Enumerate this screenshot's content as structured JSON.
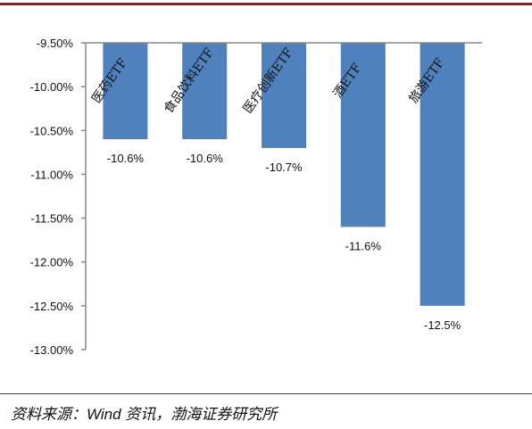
{
  "chart_data": {
    "type": "bar",
    "categories": [
      "医药ETF",
      "食品饮料ETF",
      "医疗创新ETF",
      "酒ETF",
      "旅游ETF"
    ],
    "values": [
      -10.6,
      -10.6,
      -10.7,
      -11.6,
      -12.5
    ],
    "data_labels": [
      "-10.6%",
      "-10.6%",
      "-10.7%",
      "-11.6%",
      "-12.5%"
    ],
    "y_ticks": [
      "-9.50%",
      "-10.00%",
      "-10.50%",
      "-11.00%",
      "-11.50%",
      "-12.00%",
      "-12.50%",
      "-13.00%"
    ],
    "ylim": [
      -13.0,
      -9.5
    ],
    "bar_color": "#4f81bd",
    "grid": false,
    "legend": "none"
  },
  "source_text": "资料来源：Wind 资讯，渤海证券研究所",
  "colors": {
    "rule": "#9b1b1f",
    "axis": "#888888"
  }
}
